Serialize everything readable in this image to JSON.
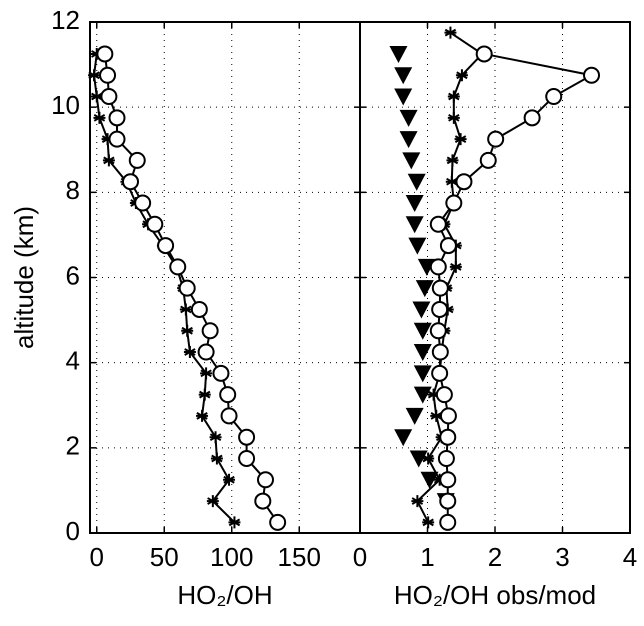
{
  "chart_data": [
    {
      "type": "line",
      "xlabel": "HO₂/OH",
      "ylabel": "altitude (km)",
      "xlim": [
        -5,
        195
      ],
      "xticks": [
        0,
        50,
        100,
        150
      ],
      "ylim": [
        0,
        12
      ],
      "yticks": [
        0,
        2,
        4,
        6,
        8,
        10,
        12
      ],
      "ytick_labels": true,
      "grid": true,
      "series": [
        {
          "marker": "star",
          "line": true,
          "color": "#000000",
          "x": [
            102,
            86,
            98,
            89,
            88,
            78,
            80,
            81,
            69,
            67,
            66,
            64,
            59,
            49,
            38,
            29,
            22,
            9,
            8,
            2,
            0,
            -2,
            0
          ],
          "y": [
            0.25,
            0.75,
            1.25,
            1.75,
            2.25,
            2.75,
            3.25,
            3.75,
            4.25,
            4.75,
            5.25,
            5.75,
            6.25,
            6.75,
            7.25,
            7.75,
            8.25,
            8.75,
            9.25,
            9.75,
            10.25,
            10.75,
            11.25
          ]
        },
        {
          "marker": "circle",
          "line": true,
          "color": "#000000",
          "x": [
            134,
            123,
            125,
            111,
            111,
            98,
            97,
            92,
            81,
            84,
            76,
            67,
            60,
            51,
            43,
            34,
            25,
            30,
            15,
            15,
            9,
            8,
            6
          ],
          "y": [
            0.25,
            0.75,
            1.25,
            1.75,
            2.25,
            2.75,
            3.25,
            3.75,
            4.25,
            4.75,
            5.25,
            5.75,
            6.25,
            6.75,
            7.25,
            7.75,
            8.25,
            8.75,
            9.25,
            9.75,
            10.25,
            10.75,
            11.25
          ]
        }
      ]
    },
    {
      "type": "line",
      "xlabel": "HO₂/OH obs/mod",
      "xlim": [
        0,
        4
      ],
      "xticks": [
        0,
        1,
        2,
        3,
        4
      ],
      "ylim": [
        0,
        12
      ],
      "yticks": [
        0,
        2,
        4,
        6,
        8,
        10,
        12
      ],
      "ytick_labels": false,
      "grid": true,
      "series": [
        {
          "marker": "triangle",
          "line": false,
          "color": "#000000",
          "x": [
            1.27,
            1.03,
            0.87,
            0.64,
            0.81,
            0.93,
            0.93,
            0.93,
            0.93,
            0.91,
            0.96,
            0.99,
            0.85,
            0.81,
            0.81,
            0.84,
            0.76,
            0.72,
            0.72,
            0.64,
            0.64,
            0.57
          ],
          "y": [
            0.75,
            1.25,
            1.75,
            2.25,
            2.75,
            3.25,
            3.75,
            4.25,
            4.75,
            5.25,
            5.75,
            6.25,
            6.75,
            7.25,
            7.75,
            8.25,
            8.75,
            9.25,
            9.75,
            10.25,
            10.75,
            11.25
          ]
        },
        {
          "marker": "star",
          "line": true,
          "color": "#000000",
          "x": [
            1.01,
            0.85,
            1.18,
            1.01,
            1.21,
            1.13,
            1.09,
            1.18,
            1.21,
            1.25,
            1.3,
            1.28,
            1.42,
            1.42,
            1.25,
            1.39,
            1.36,
            1.37,
            1.49,
            1.39,
            1.39,
            1.51,
            1.81,
            1.34
          ],
          "y": [
            0.25,
            0.75,
            1.25,
            1.75,
            2.25,
            2.75,
            3.25,
            3.75,
            4.25,
            4.75,
            5.25,
            5.75,
            6.25,
            6.75,
            7.25,
            7.75,
            8.25,
            8.75,
            9.25,
            9.75,
            10.25,
            10.75,
            11.25,
            11.75
          ]
        },
        {
          "marker": "circle",
          "line": true,
          "color": "#000000",
          "x": [
            1.3,
            1.3,
            1.3,
            1.28,
            1.3,
            1.31,
            1.25,
            1.18,
            1.19,
            1.16,
            1.18,
            1.19,
            1.16,
            1.31,
            1.16,
            1.39,
            1.54,
            1.9,
            2.01,
            2.55,
            2.87,
            3.43,
            1.84
          ],
          "y": [
            0.25,
            0.75,
            1.25,
            1.75,
            2.25,
            2.75,
            3.25,
            3.75,
            4.25,
            4.75,
            5.25,
            5.75,
            6.25,
            6.75,
            7.25,
            7.75,
            8.25,
            8.75,
            9.25,
            9.75,
            10.25,
            10.75,
            11.25
          ]
        }
      ]
    }
  ]
}
